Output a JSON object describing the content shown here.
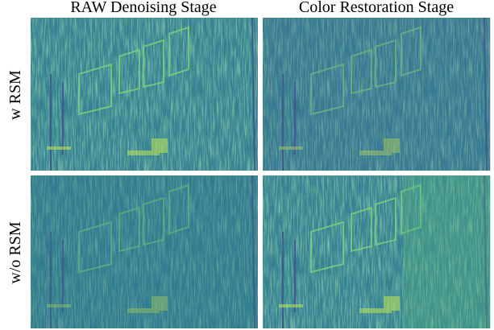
{
  "column_titles": [
    "RAW Denoising Stage",
    "Color Restoration Stage"
  ],
  "row_labels": [
    "w RSM",
    "w/o RSM"
  ]
}
